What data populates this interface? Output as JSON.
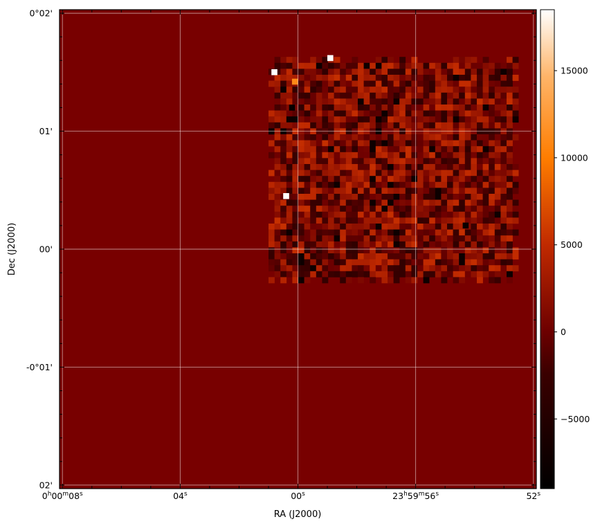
{
  "chart_data": {
    "type": "heatmap",
    "colormap": "gist_heat",
    "colors": {
      "min": "#000000",
      "low": "#6e0000",
      "mid": "#c12a00",
      "high": "#ff7d00",
      "max": "#ffffff",
      "grid": "#ffffff"
    },
    "grid": true,
    "xlabel": "RA (J2000)",
    "ylabel": "Dec (J2000)",
    "x_ticks": [
      {
        "value": 8,
        "label": "0h00m08s"
      },
      {
        "value": 4,
        "label": "04s"
      },
      {
        "value": 0,
        "label": "00s"
      },
      {
        "value": -4,
        "label": "23h59m56s"
      },
      {
        "value": -8,
        "label": "52s"
      }
    ],
    "y_ticks": [
      {
        "value": 2,
        "label": "0°02'"
      },
      {
        "value": 1,
        "label": "01'"
      },
      {
        "value": 0,
        "label": "00'"
      },
      {
        "value": -1,
        "label": "-0°01'"
      },
      {
        "value": -2,
        "label": "02'"
      }
    ],
    "xlim": [
      8.1,
      -8.1
    ],
    "ylim": [
      -2.03,
      2.03
    ],
    "colorbar": {
      "range": [
        -9000,
        18500
      ],
      "ticks": [
        {
          "value": -5000,
          "label": "−5000"
        },
        {
          "value": 0,
          "label": "0"
        },
        {
          "value": 5000,
          "label": "5000"
        },
        {
          "value": 10000,
          "label": "10000"
        },
        {
          "value": 15000,
          "label": "15000"
        }
      ]
    },
    "background_value": 0,
    "data_region": {
      "ra_range_s": [
        1.0,
        -7.5
      ],
      "dec_range_arcmin": [
        -0.32,
        1.63
      ]
    },
    "notable_pixels": [
      {
        "ra_s": 0.4,
        "dec_arcmin": 0.45,
        "value": 18500
      },
      {
        "ra_s": -1.1,
        "dec_arcmin": 1.62,
        "value": 18500
      },
      {
        "ra_s": 0.8,
        "dec_arcmin": 1.5,
        "value": 18500
      },
      {
        "ra_s": 0.1,
        "dec_arcmin": 1.42,
        "value": 11000
      },
      {
        "ra_s": -5.7,
        "dec_arcmin": 0.2,
        "value": -8000
      },
      {
        "ra_s": 0.2,
        "dec_arcmin": 1.2,
        "value": -8500
      }
    ]
  }
}
